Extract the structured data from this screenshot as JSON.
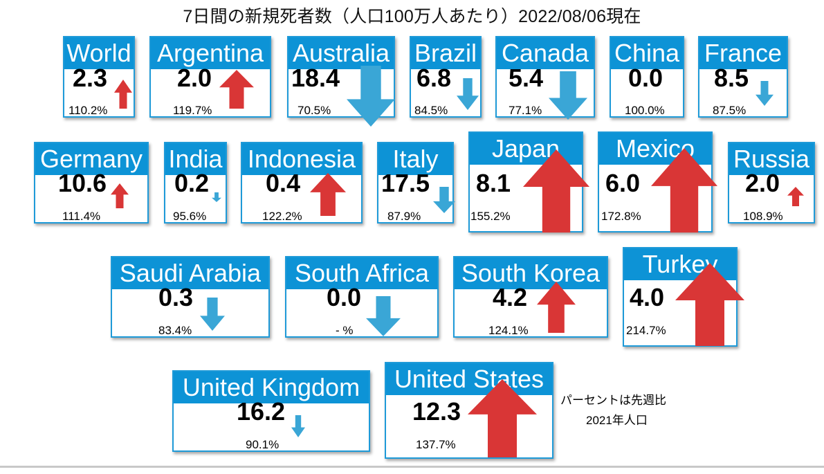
{
  "title": "7日間の新規死者数（人口100万人あたり）2022/08/06現在",
  "note": {
    "line1": "パーセントは先週比",
    "line2": "2021年人口"
  },
  "colors": {
    "header": "#0d93d6",
    "up": "#d93636",
    "down": "#3aa6d6"
  },
  "chart_data": {
    "type": "table",
    "title": "7日間の新規死者数（人口100万人あたり）2022/08/06現在",
    "columns": [
      "country",
      "value",
      "week_over_week"
    ],
    "rows": [
      {
        "country": "World",
        "value": "2.3",
        "change": "110.2%",
        "direction": "up"
      },
      {
        "country": "Argentina",
        "value": "2.0",
        "change": "119.7%",
        "direction": "up"
      },
      {
        "country": "Australia",
        "value": "18.4",
        "change": "70.5%",
        "direction": "down"
      },
      {
        "country": "Brazil",
        "value": "6.8",
        "change": "84.5%",
        "direction": "down"
      },
      {
        "country": "Canada",
        "value": "5.4",
        "change": "77.1%",
        "direction": "down"
      },
      {
        "country": "China",
        "value": "0.0",
        "change": "100.0%",
        "direction": "none"
      },
      {
        "country": "France",
        "value": "8.5",
        "change": "87.5%",
        "direction": "down"
      },
      {
        "country": "Germany",
        "value": "10.6",
        "change": "111.4%",
        "direction": "up"
      },
      {
        "country": "India",
        "value": "0.2",
        "change": "95.6%",
        "direction": "down"
      },
      {
        "country": "Indonesia",
        "value": "0.4",
        "change": "122.2%",
        "direction": "up"
      },
      {
        "country": "Italy",
        "value": "17.5",
        "change": "87.9%",
        "direction": "down"
      },
      {
        "country": "Japan",
        "value": "8.1",
        "change": "155.2%",
        "direction": "up"
      },
      {
        "country": "Mexico",
        "value": "6.0",
        "change": "172.8%",
        "direction": "up"
      },
      {
        "country": "Russia",
        "value": "2.0",
        "change": "108.9%",
        "direction": "up"
      },
      {
        "country": "Saudi Arabia",
        "value": "0.3",
        "change": "83.4%",
        "direction": "down"
      },
      {
        "country": "South Africa",
        "value": "0.0",
        "change": "- %",
        "direction": "down"
      },
      {
        "country": "South Korea",
        "value": "4.2",
        "change": "124.1%",
        "direction": "up"
      },
      {
        "country": "Turkey",
        "value": "4.0",
        "change": "214.7%",
        "direction": "up"
      },
      {
        "country": "United Kingdom",
        "value": "16.2",
        "change": "90.1%",
        "direction": "down"
      },
      {
        "country": "United States",
        "value": "12.3",
        "change": "137.7%",
        "direction": "up"
      }
    ]
  }
}
